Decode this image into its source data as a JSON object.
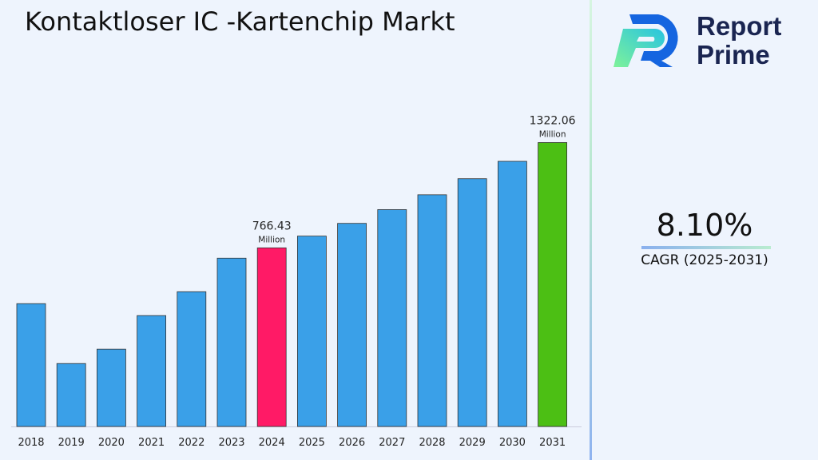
{
  "title": "Kontaktloser IC -Kartenchip Markt",
  "logo": {
    "line1": "Report",
    "line2": "Prime"
  },
  "cagr": {
    "value": "8.10%",
    "label": "CAGR (2025-2031)"
  },
  "chart_data": {
    "type": "bar",
    "categories": [
      "2018",
      "2019",
      "2020",
      "2021",
      "2022",
      "2023",
      "2024",
      "2025",
      "2026",
      "2027",
      "2028",
      "2029",
      "2030",
      "2031"
    ],
    "values": [
      472,
      156,
      232,
      409,
      535,
      712,
      766.43,
      828.5,
      895.6,
      968.2,
      1046.6,
      1131.4,
      1223.0,
      1322.06
    ],
    "ylim": [
      -176,
      1400
    ],
    "colors": {
      "default": "#3aa0e8",
      "highlight_2024": "#ff1a66",
      "highlight_2031": "#4cbf14"
    },
    "annotations": [
      {
        "category": "2024",
        "value": "766.43",
        "unit": "Million"
      },
      {
        "category": "2031",
        "value": "1322.06",
        "unit": "Million"
      }
    ],
    "grid": false
  }
}
